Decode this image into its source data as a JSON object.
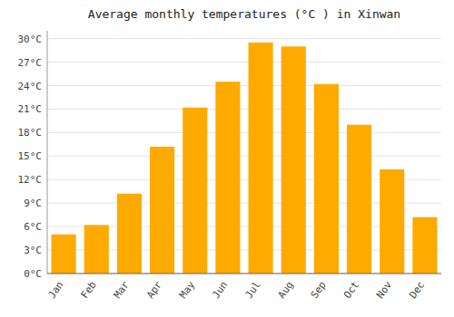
{
  "chart_data": {
    "type": "bar",
    "title": "Average monthly temperatures (°C ) in Xinwan",
    "categories": [
      "Jan",
      "Feb",
      "Mar",
      "Apr",
      "May",
      "Jun",
      "Jul",
      "Aug",
      "Sep",
      "Oct",
      "Nov",
      "Dec"
    ],
    "values": [
      5.0,
      6.2,
      10.2,
      16.2,
      21.2,
      24.5,
      29.5,
      29.0,
      24.2,
      19.0,
      13.3,
      7.2
    ],
    "color": "#FFAA00",
    "ylim": [
      0,
      31
    ],
    "yticks": [
      {
        "value": 0,
        "label": "0°C"
      },
      {
        "value": 3,
        "label": "3°C"
      },
      {
        "value": 6,
        "label": "6°C"
      },
      {
        "value": 9,
        "label": "9°C"
      },
      {
        "value": 12,
        "label": "12°C"
      },
      {
        "value": 15,
        "label": "15°C"
      },
      {
        "value": 18,
        "label": "18°C"
      },
      {
        "value": 21,
        "label": "21°C"
      },
      {
        "value": 24,
        "label": "24°C"
      },
      {
        "value": 27,
        "label": "27°C"
      },
      {
        "value": 30,
        "label": "30°C"
      }
    ],
    "grid": true
  }
}
